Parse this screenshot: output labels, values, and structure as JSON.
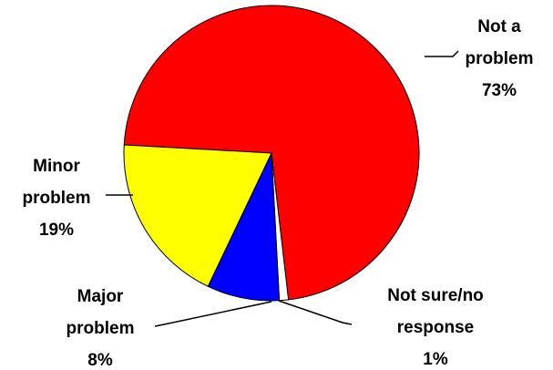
{
  "chart_data": {
    "type": "pie",
    "categories": [
      "Not a problem",
      "Not sure/no response",
      "Major problem",
      "Minor problem"
    ],
    "values": [
      73,
      1,
      8,
      19
    ],
    "value_labels": [
      "73%",
      "1%",
      "8%",
      "19%"
    ],
    "colors": [
      "#ff0000",
      "#ffffff",
      "#0000ff",
      "#ffff00"
    ]
  }
}
